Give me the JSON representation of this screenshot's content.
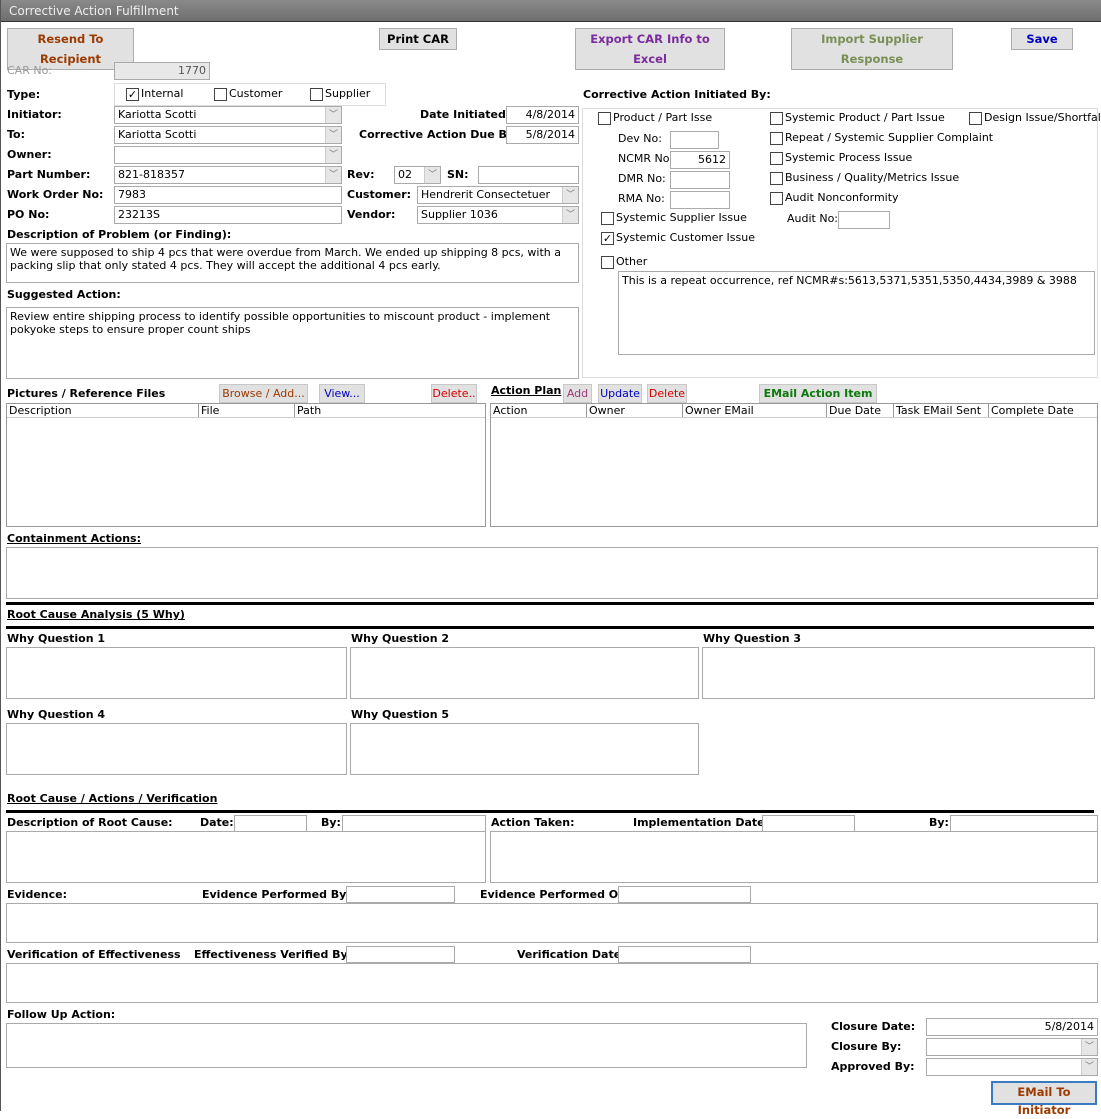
{
  "window": {
    "title": "Corrective Action Fulfillment"
  },
  "toolbar": {
    "resend": "Resend To Recipient",
    "print": "Print CAR",
    "export": "Export CAR Info to Excel",
    "import": "Import Supplier Response",
    "save": "Save"
  },
  "colors": {
    "resend": "#9c3a00",
    "export": "#7a2c9e",
    "import": "#7a8f55",
    "save": "#0000c0",
    "delete": "#d00000",
    "email_action": "#0a7a0a"
  },
  "header": {
    "car_no_label": "CAR No:",
    "car_no": "1770",
    "type_label": "Type:",
    "type_options": [
      {
        "label": "Internal",
        "checked": true
      },
      {
        "label": "Customer",
        "checked": false
      },
      {
        "label": "Supplier",
        "checked": false
      }
    ],
    "initiator_label": "Initiator:",
    "initiator": "Kariotta Scotti",
    "to_label": "To:",
    "to": "Kariotta Scotti",
    "owner_label": "Owner:",
    "owner": "",
    "part_label": "Part Number:",
    "part": "821-818357",
    "wo_label": "Work Order No:",
    "wo": "7983",
    "po_label": "PO No:",
    "po": "23213S",
    "date_init_label": "Date Initiated:",
    "date_init": "4/8/2014",
    "due_label": "Corrective Action Due By:",
    "due": "5/8/2014",
    "rev_label": "Rev:",
    "rev": "02",
    "sn_label": "SN:",
    "sn": "",
    "customer_label": "Customer:",
    "customer": "Hendrerit Consectetuer Incor",
    "vendor_label": "Vendor:",
    "vendor": "Supplier 1036",
    "desc_label": "Description of Problem (or Finding):",
    "desc": "We were supposed to ship 4 pcs that were overdue from March.  We ended up shipping 8 pcs, with a packing slip that only stated 4 pcs.  They will accept the additional 4 pcs early.",
    "suggested_label": "Suggested Action:",
    "suggested": "Review entire shipping process to identify possible opportunities to miscount product - implement pokyoke steps to ensure proper count ships"
  },
  "initiated_by": {
    "label": "Corrective Action Initiated By:",
    "product": "Product / Part Isse",
    "dev_label": "Dev No:",
    "dev": "",
    "ncmr_label": "NCMR No:",
    "ncmr": "5612",
    "dmr_label": "DMR No:",
    "dmr": "",
    "rma_label": "RMA No:",
    "rma": "",
    "sys_supplier": "Systemic Supplier Issue",
    "sys_customer": "Systemic Customer Issue",
    "other": "Other",
    "other_text": "This is a repeat occurrence, ref NCMR#s:5613,5371,5351,5350,4434,3989 & 3988",
    "sys_product": "Systemic Product / Part Issue",
    "repeat": "Repeat / Systemic Supplier Complaint",
    "sys_process": "Systemic Process Issue",
    "business": "Business / Quality/Metrics Issue",
    "audit": "Audit Nonconformity",
    "audit_no_label": "Audit No:",
    "audit_no": "",
    "design": "Design Issue/Shortfall",
    "sys_customer_checked": true
  },
  "files": {
    "label": "Pictures / Reference Files",
    "browse": "Browse / Add...",
    "view": "View...",
    "delete": "Delete..",
    "columns": [
      "Description",
      "File",
      "Path"
    ]
  },
  "action_plan": {
    "label": "Action Plan",
    "add": "Add",
    "update": "Update",
    "delete": "Delete",
    "email": "EMail Action Item",
    "columns": [
      "Action",
      "Owner",
      "Owner EMail",
      "Due Date",
      "Task EMail Sent",
      "Complete Date"
    ]
  },
  "containment": {
    "label": "Containment Actions:"
  },
  "rca": {
    "label": "Root Cause Analysis (5 Why)",
    "q1": "Why Question 1",
    "q2": "Why Question 2",
    "q3": "Why Question 3",
    "q4": "Why Question 4",
    "q5": "Why Question 5"
  },
  "verification": {
    "label": "Root Cause / Actions / Verification",
    "root_desc": "Description of Root Cause:",
    "date": "Date:",
    "by": "By:",
    "action_taken": "Action Taken:",
    "impl_date": "Implementation Date:",
    "by2": "By:",
    "evidence": "Evidence:",
    "evid_by": "Evidence Performed  By:",
    "evid_on": "Evidence Performed On:",
    "voe": "Verification of Effectiveness",
    "eff_by": "Effectiveness Verified  By:",
    "ver_date": "Verification Date:",
    "follow": "Follow Up Action:",
    "closure_date_label": "Closure Date:",
    "closure_date": "5/8/2014",
    "closure_by_label": "Closure By:",
    "approved_label": "Approved By:",
    "email_init": "EMail To Initiator"
  }
}
